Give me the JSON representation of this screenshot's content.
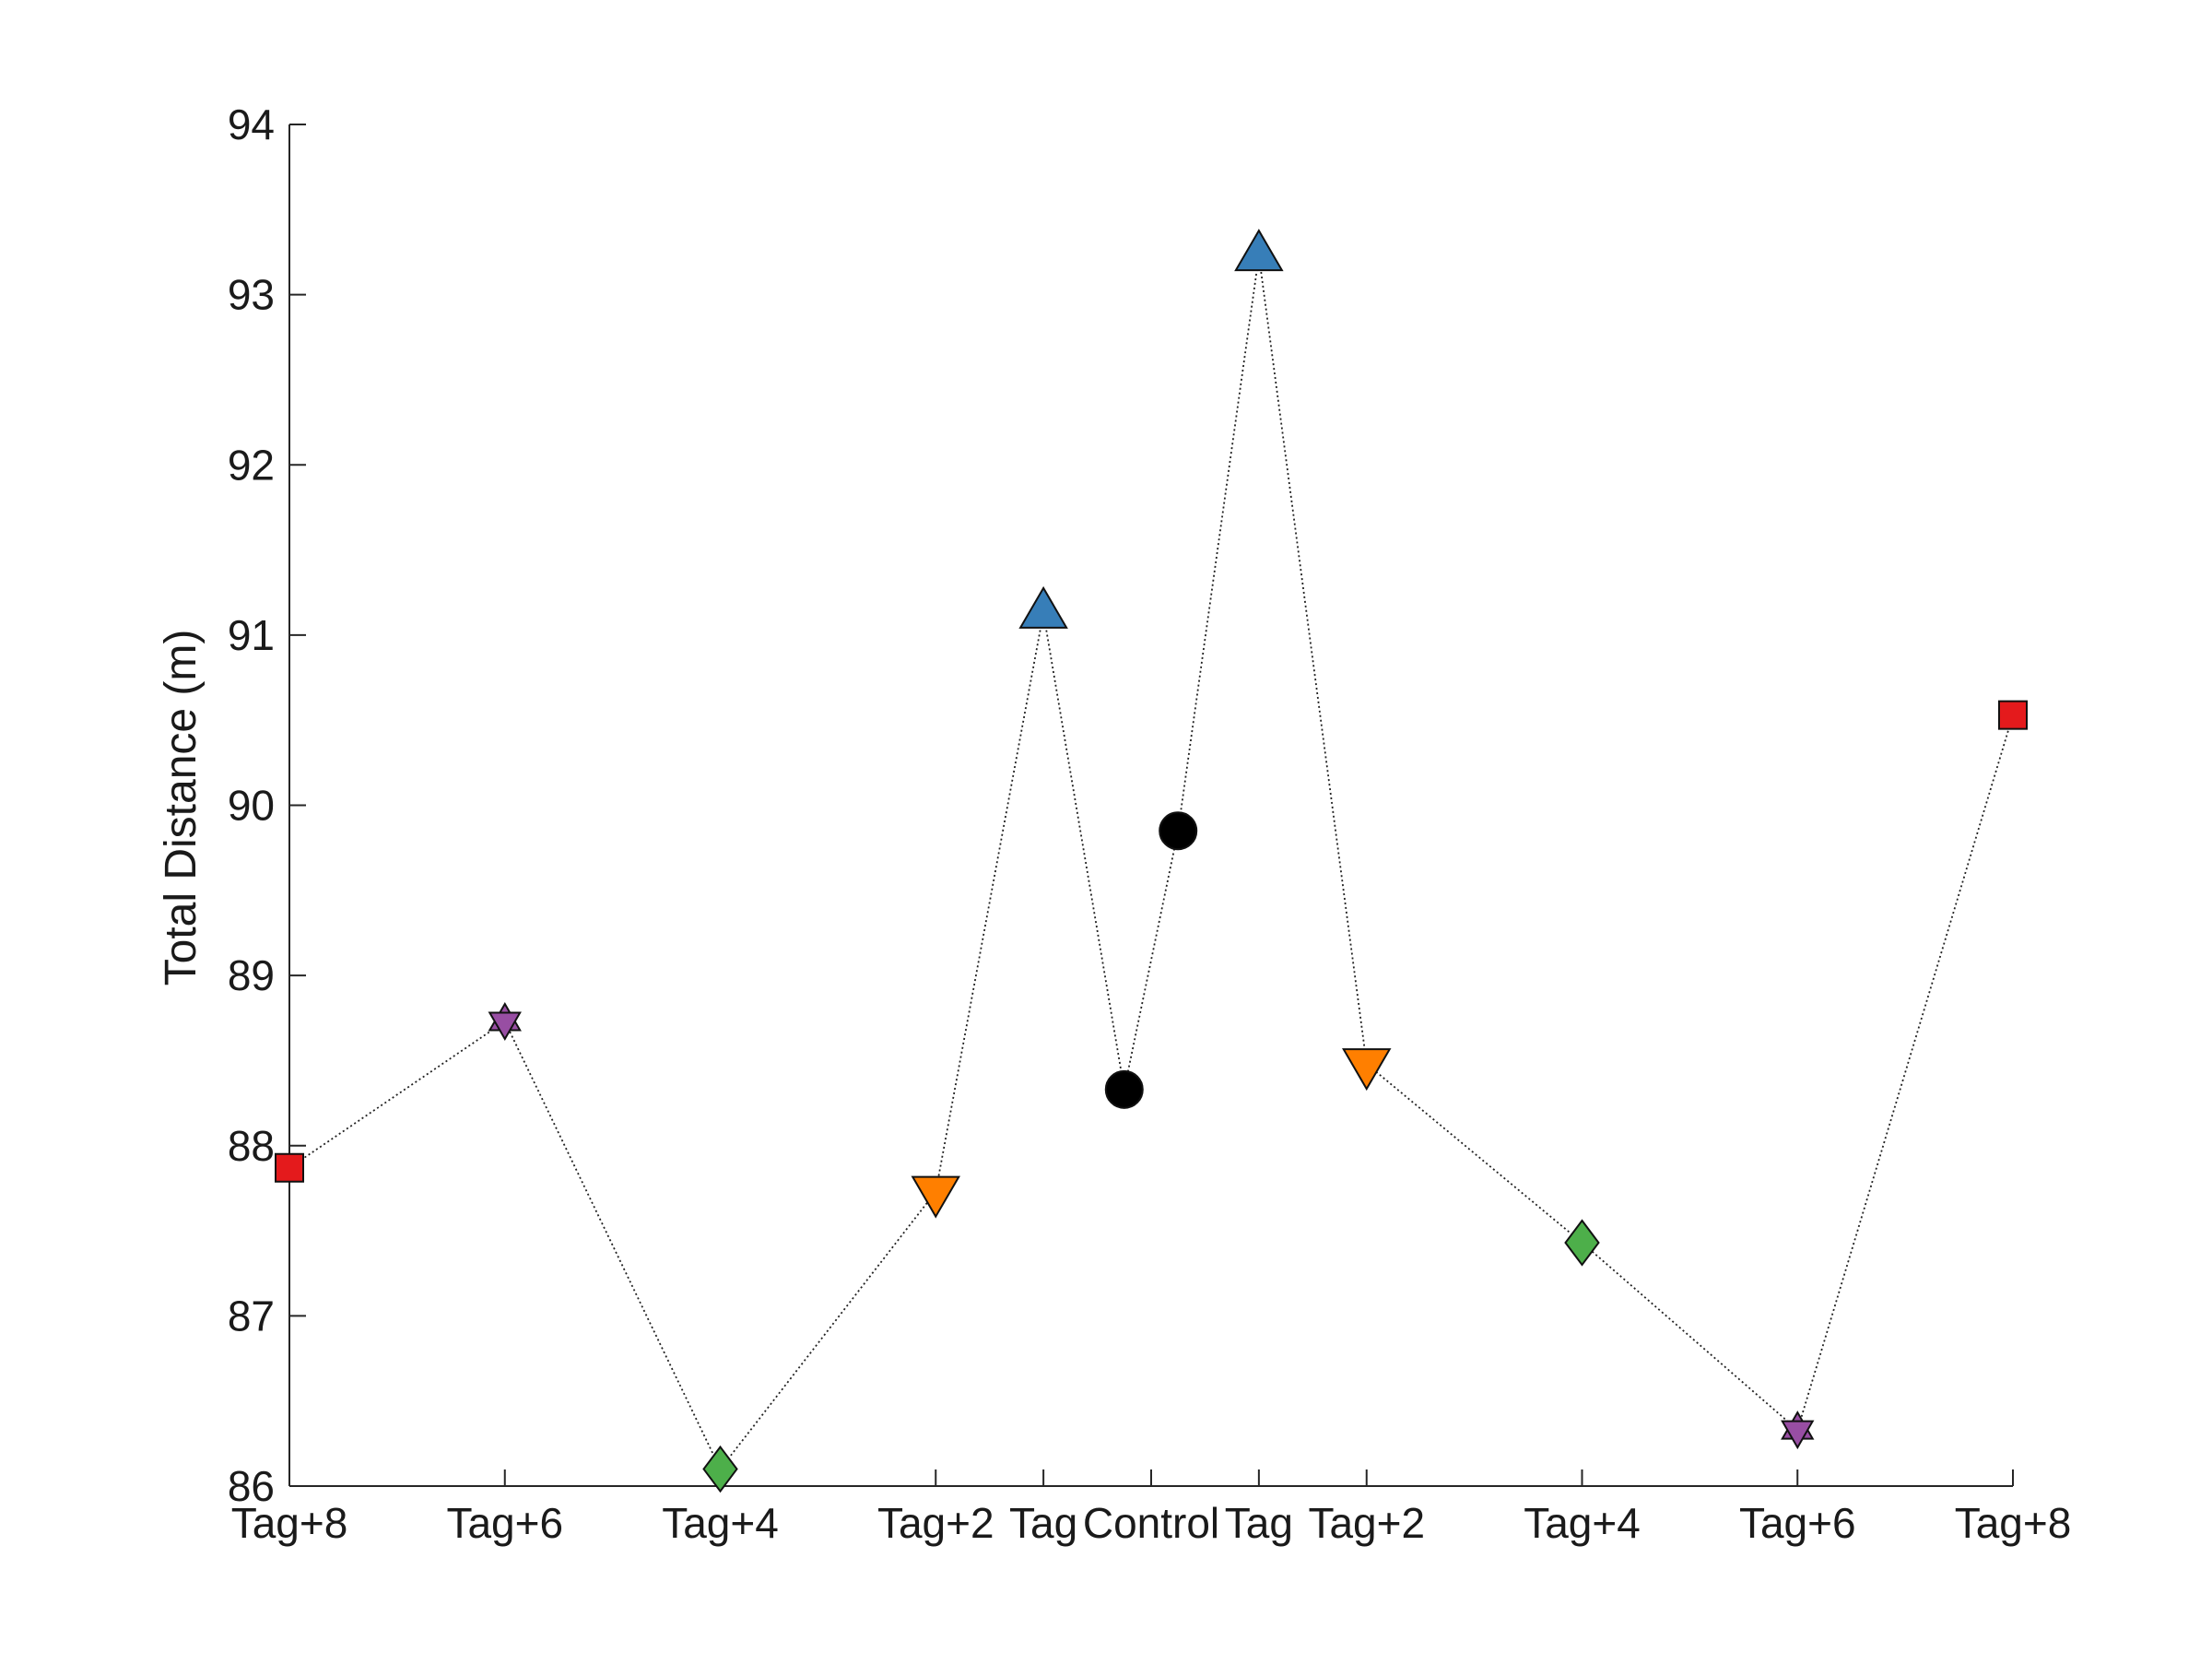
{
  "chart_data": {
    "type": "scatter",
    "title": "",
    "xlabel": "",
    "ylabel": "Total Distance (m)",
    "ylim": [
      86,
      94
    ],
    "yticks": [
      86,
      87,
      88,
      89,
      90,
      91,
      92,
      93,
      94
    ],
    "grid": false,
    "legend": "none",
    "x_ticks": [
      {
        "x": -8,
        "label": "Tag+8"
      },
      {
        "x": -6,
        "label": "Tag+6"
      },
      {
        "x": -4,
        "label": "Tag+4"
      },
      {
        "x": -2,
        "label": "Tag+2"
      },
      {
        "x": -1,
        "label": "Tag"
      },
      {
        "x": 0,
        "label": "Control"
      },
      {
        "x": 1,
        "label": "Tag"
      },
      {
        "x": 2,
        "label": "Tag+2"
      },
      {
        "x": 4,
        "label": "Tag+4"
      },
      {
        "x": 6,
        "label": "Tag+6"
      },
      {
        "x": 8,
        "label": "Tag+8"
      }
    ],
    "xlim": [
      -8,
      8
    ],
    "line_style": "dotted",
    "points": [
      {
        "x": -8,
        "y": 87.87,
        "marker": "square",
        "color": "#e41a1c"
      },
      {
        "x": -6,
        "y": 88.73,
        "marker": "hexagram",
        "color": "#984ea3"
      },
      {
        "x": -4,
        "y": 86.1,
        "marker": "diamond",
        "color": "#4daf4a"
      },
      {
        "x": -2,
        "y": 87.73,
        "marker": "triangle-down",
        "color": "#ff7f00"
      },
      {
        "x": -1,
        "y": 91.13,
        "marker": "triangle-up",
        "color": "#377eb8"
      },
      {
        "x": -0.25,
        "y": 88.33,
        "marker": "circle",
        "color": "#000000"
      },
      {
        "x": 0.25,
        "y": 89.85,
        "marker": "circle",
        "color": "#000000"
      },
      {
        "x": 1,
        "y": 93.23,
        "marker": "triangle-up",
        "color": "#377eb8"
      },
      {
        "x": 2,
        "y": 88.48,
        "marker": "triangle-down",
        "color": "#ff7f00"
      },
      {
        "x": 4,
        "y": 87.43,
        "marker": "diamond",
        "color": "#4daf4a"
      },
      {
        "x": 6,
        "y": 86.33,
        "marker": "hexagram",
        "color": "#984ea3"
      },
      {
        "x": 8,
        "y": 90.53,
        "marker": "square",
        "color": "#e41a1c"
      }
    ]
  }
}
